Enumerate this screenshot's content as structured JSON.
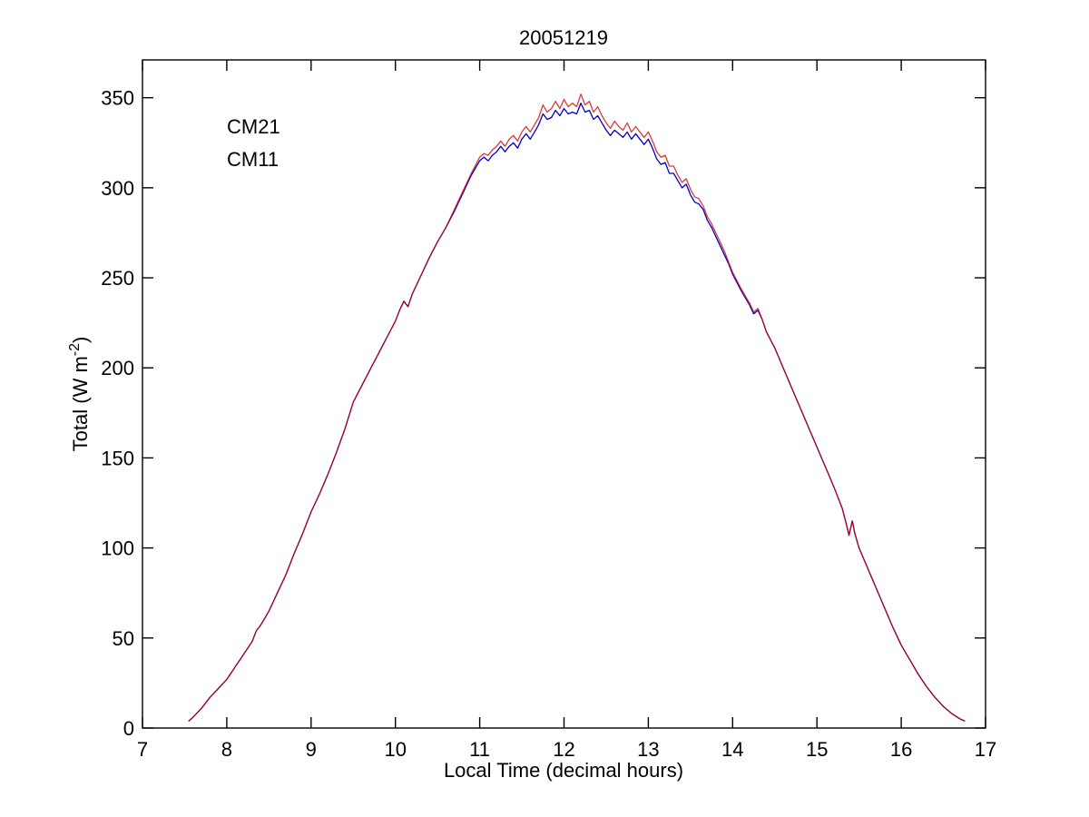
{
  "figure": {
    "ylabel_main": "Total (W m",
    "ylabel_sup": "-2",
    "ylabel_close": ")"
  },
  "chart_data": {
    "type": "line",
    "title": "20051219",
    "xlabel": "Local Time (decimal hours)",
    "ylabel": "Total (W m^-2)",
    "xlim": [
      7,
      17
    ],
    "ylim": [
      0,
      371
    ],
    "xticks": [
      7,
      8,
      9,
      10,
      11,
      12,
      13,
      14,
      15,
      16,
      17
    ],
    "yticks": [
      0,
      50,
      100,
      150,
      200,
      250,
      300,
      350
    ],
    "grid": false,
    "legend_position": "inside-top-left",
    "x": [
      7.55,
      7.6,
      7.7,
      7.8,
      7.9,
      8.0,
      8.1,
      8.2,
      8.3,
      8.35,
      8.4,
      8.5,
      8.6,
      8.7,
      8.8,
      8.9,
      9.0,
      9.1,
      9.2,
      9.3,
      9.4,
      9.5,
      9.6,
      9.7,
      9.8,
      9.9,
      10.0,
      10.05,
      10.1,
      10.15,
      10.2,
      10.3,
      10.4,
      10.5,
      10.6,
      10.7,
      10.8,
      10.9,
      11.0,
      11.05,
      11.1,
      11.15,
      11.2,
      11.25,
      11.3,
      11.35,
      11.4,
      11.45,
      11.5,
      11.55,
      11.6,
      11.65,
      11.7,
      11.75,
      11.8,
      11.85,
      11.9,
      11.95,
      12.0,
      12.05,
      12.1,
      12.15,
      12.2,
      12.25,
      12.3,
      12.35,
      12.4,
      12.45,
      12.5,
      12.55,
      12.6,
      12.65,
      12.7,
      12.75,
      12.8,
      12.85,
      12.9,
      12.95,
      13.0,
      13.05,
      13.1,
      13.15,
      13.2,
      13.25,
      13.3,
      13.35,
      13.4,
      13.45,
      13.5,
      13.55,
      13.6,
      13.65,
      13.7,
      13.75,
      13.8,
      13.85,
      13.9,
      13.95,
      14.0,
      14.1,
      14.15,
      14.2,
      14.25,
      14.3,
      14.35,
      14.4,
      14.5,
      14.6,
      14.7,
      14.8,
      14.9,
      15.0,
      15.1,
      15.2,
      15.3,
      15.35,
      15.38,
      15.42,
      15.45,
      15.5,
      15.6,
      15.7,
      15.8,
      15.9,
      16.0,
      16.1,
      16.2,
      16.3,
      16.4,
      16.5,
      16.6,
      16.7,
      16.75
    ],
    "series": [
      {
        "name": "CM21",
        "color": "#0000cc",
        "values": [
          4,
          6,
          11,
          17,
          22,
          27,
          34,
          41,
          48,
          54,
          57,
          65,
          75,
          85,
          97,
          108,
          120,
          130,
          141,
          153,
          166,
          181,
          190,
          199,
          208,
          217,
          226,
          232,
          237,
          234,
          241,
          251,
          261,
          270,
          278,
          287,
          297,
          307,
          315,
          317,
          315,
          318,
          320,
          323,
          320,
          323,
          325,
          322,
          327,
          330,
          327,
          331,
          335,
          341,
          338,
          339,
          343,
          340,
          344,
          341,
          342,
          341,
          347,
          342,
          343,
          338,
          340,
          336,
          332,
          329,
          332,
          330,
          328,
          331,
          327,
          330,
          327,
          324,
          327,
          322,
          316,
          313,
          314,
          308,
          308,
          304,
          300,
          302,
          296,
          292,
          291,
          288,
          282,
          278,
          273,
          268,
          263,
          258,
          252,
          243,
          239,
          235,
          230,
          232,
          227,
          220,
          211,
          200,
          189,
          178,
          167,
          156,
          145,
          134,
          122,
          113,
          107,
          115,
          108,
          100,
          89,
          78,
          67,
          56,
          46,
          38,
          30,
          23,
          17,
          12,
          8,
          5,
          4
        ]
      },
      {
        "name": "CM11",
        "color": "#d40000",
        "values": [
          4,
          6,
          11,
          17,
          22,
          27,
          34,
          41,
          48,
          54,
          57,
          65,
          75,
          85,
          97,
          108,
          120,
          130,
          141,
          153,
          166,
          181,
          190,
          199,
          208,
          217,
          226,
          232,
          237,
          234,
          241,
          251,
          261,
          270,
          278,
          288,
          298,
          308,
          317,
          319,
          318,
          321,
          323,
          326,
          323,
          327,
          329,
          326,
          331,
          334,
          331,
          335,
          339,
          346,
          342,
          344,
          348,
          344,
          349,
          345,
          347,
          345,
          352,
          346,
          348,
          342,
          345,
          340,
          336,
          333,
          337,
          334,
          332,
          336,
          331,
          334,
          331,
          328,
          331,
          326,
          320,
          317,
          318,
          312,
          312,
          307,
          303,
          305,
          299,
          295,
          294,
          290,
          284,
          280,
          275,
          270,
          265,
          259,
          253,
          244,
          240,
          236,
          231,
          233,
          227,
          220,
          211,
          200,
          189,
          178,
          167,
          156,
          145,
          134,
          122,
          113,
          107,
          115,
          108,
          100,
          89,
          78,
          67,
          56,
          46,
          38,
          30,
          23,
          17,
          12,
          8,
          5,
          4
        ]
      }
    ]
  }
}
